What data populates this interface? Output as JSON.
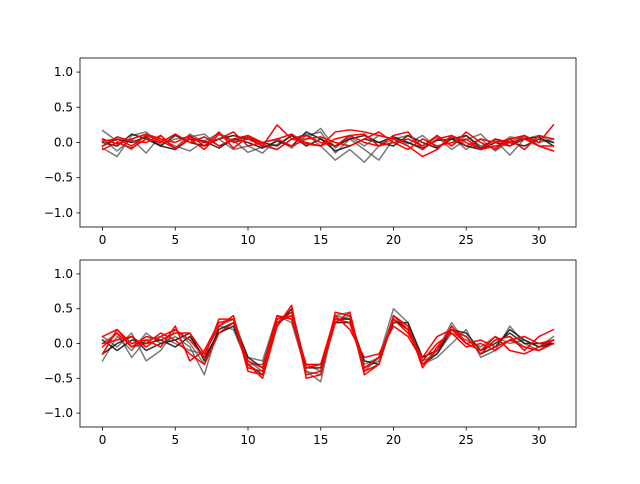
{
  "chart_data": [
    {
      "type": "line",
      "xlim": [
        -1.55,
        32.55
      ],
      "ylim": [
        -1.2,
        1.2
      ],
      "xticks": [
        0,
        5,
        10,
        15,
        20,
        25,
        30
      ],
      "xtick_labels": [
        "0",
        "5",
        "10",
        "15",
        "20",
        "25",
        "30"
      ],
      "yticks": [
        -1.0,
        -0.5,
        0.0,
        0.5,
        1.0
      ],
      "ytick_labels": [
        "−1.0",
        "−0.5",
        "0.0",
        "0.5",
        "1.0"
      ],
      "grid": false,
      "series": [
        {
          "color": "#4d4d4d",
          "alpha": 0.75,
          "values": [
            0.17,
            0.02,
            -0.1,
            0.12,
            0.05,
            -0.05,
            -0.12,
            0.02,
            0.13,
            0.03,
            -0.14,
            -0.06,
            -0.03,
            0.1,
            0.04,
            0.2,
            -0.08,
            0.08,
            -0.05,
            0.1,
            0.05,
            0.1,
            -0.05,
            0.08,
            -0.1,
            0.04,
            0.12,
            -0.08,
            0.08,
            0.05,
            0.1,
            0.0
          ]
        },
        {
          "color": "#4d4d4d",
          "alpha": 0.75,
          "values": [
            -0.08,
            -0.2,
            0.1,
            0.15,
            -0.03,
            0.05,
            0.08,
            0.12,
            -0.05,
            0.03,
            0.08,
            -0.05,
            -0.1,
            0.05,
            0.12,
            -0.05,
            -0.25,
            -0.1,
            -0.28,
            -0.05,
            0.05,
            -0.02,
            0.1,
            -0.08,
            0.08,
            -0.1,
            0.05,
            -0.12,
            0.02,
            0.08,
            -0.05,
            -0.12
          ]
        },
        {
          "color": "#4d4d4d",
          "alpha": 0.75,
          "values": [
            0.05,
            -0.12,
            0.05,
            -0.15,
            0.1,
            -0.08,
            0.12,
            0.0,
            0.05,
            -0.1,
            -0.05,
            -0.15,
            0.05,
            -0.08,
            0.1,
            0.15,
            -0.15,
            0.05,
            -0.1,
            -0.25,
            0.05,
            0.0,
            -0.1,
            0.1,
            -0.05,
            0.1,
            -0.05,
            0.03,
            -0.18,
            0.05,
            0.0,
            0.05
          ]
        },
        {
          "color": "#1a1a1a",
          "alpha": 0.9,
          "values": [
            -0.05,
            0.05,
            0.0,
            0.08,
            -0.05,
            -0.1,
            0.05,
            0.02,
            -0.08,
            0.05,
            0.0,
            -0.08,
            0.02,
            -0.05,
            0.15,
            0.05,
            -0.12,
            -0.05,
            0.05,
            0.0,
            0.08,
            0.0,
            -0.08,
            0.03,
            0.05,
            -0.05,
            -0.1,
            0.0,
            -0.05,
            0.05,
            0.08,
            -0.05
          ]
        },
        {
          "color": "#1a1a1a",
          "alpha": 0.9,
          "values": [
            0.0,
            -0.05,
            0.12,
            0.05,
            -0.05,
            0.1,
            0.0,
            -0.05,
            0.05,
            0.1,
            0.05,
            0.0,
            -0.05,
            0.1,
            -0.05,
            0.05,
            -0.05,
            0.05,
            0.1,
            0.0,
            -0.05,
            0.1,
            0.0,
            -0.08,
            0.05,
            0.1,
            -0.08,
            0.05,
            0.0,
            -0.05,
            0.05,
            0.0
          ]
        },
        {
          "color": "#ff0000",
          "alpha": 1,
          "values": [
            0.02,
            0.05,
            -0.05,
            0.1,
            0.02,
            -0.08,
            0.05,
            -0.1,
            0.12,
            0.0,
            0.05,
            -0.05,
            0.25,
            0.05,
            0.0,
            -0.05,
            0.15,
            0.18,
            0.15,
            0.1,
            0.05,
            -0.05,
            -0.2,
            -0.1,
            0.1,
            0.0,
            -0.1,
            0.05,
            -0.05,
            0.1,
            0.0,
            0.25
          ]
        },
        {
          "color": "#ff0000",
          "alpha": 1,
          "values": [
            -0.05,
            0.08,
            0.02,
            0.0,
            0.1,
            -0.1,
            0.08,
            0.0,
            0.05,
            0.15,
            -0.05,
            0.0,
            0.05,
            0.12,
            -0.02,
            -0.05,
            0.05,
            0.1,
            0.0,
            -0.05,
            0.0,
            0.05,
            -0.05,
            0.1,
            -0.05,
            0.15,
            0.0,
            -0.1,
            0.05,
            0.1,
            -0.05,
            -0.12
          ]
        },
        {
          "color": "#ff0000",
          "alpha": 1,
          "values": [
            0.05,
            -0.02,
            0.05,
            0.12,
            0.05,
            0.0,
            0.1,
            -0.05,
            0.15,
            -0.08,
            0.08,
            -0.02,
            -0.1,
            0.05,
            0.1,
            0.0,
            -0.05,
            0.1,
            0.12,
            -0.05,
            0.1,
            0.15,
            -0.1,
            0.05,
            0.1,
            -0.05,
            0.05,
            0.0,
            0.05,
            -0.1,
            0.1,
            0.05
          ]
        },
        {
          "color": "#ff0000",
          "alpha": 1,
          "values": [
            -0.1,
            0.0,
            -0.08,
            0.05,
            0.0,
            0.12,
            0.0,
            0.08,
            -0.05,
            0.05,
            0.1,
            0.0,
            0.05,
            -0.05,
            0.05,
            0.08,
            0.0,
            -0.05,
            0.05,
            0.15,
            0.0,
            -0.1,
            0.05,
            -0.05,
            0.0,
            0.05,
            -0.1,
            -0.05,
            0.0,
            0.05,
            -0.05,
            -0.05
          ]
        }
      ]
    },
    {
      "type": "line",
      "xlim": [
        -1.55,
        32.55
      ],
      "ylim": [
        -1.2,
        1.2
      ],
      "xticks": [
        0,
        5,
        10,
        15,
        20,
        25,
        30
      ],
      "xtick_labels": [
        "0",
        "5",
        "10",
        "15",
        "20",
        "25",
        "30"
      ],
      "yticks": [
        -1.0,
        -0.5,
        0.0,
        0.5,
        1.0
      ],
      "ytick_labels": [
        "−1.0",
        "−0.5",
        "0.0",
        "0.5",
        "1.0"
      ],
      "grid": false,
      "series": [
        {
          "color": "#4d4d4d",
          "alpha": 0.75,
          "values": [
            -0.25,
            0.1,
            -0.1,
            0.15,
            0.0,
            0.1,
            -0.05,
            -0.45,
            0.25,
            0.35,
            -0.2,
            -0.25,
            0.4,
            0.3,
            -0.4,
            -0.55,
            0.4,
            0.45,
            -0.4,
            -0.2,
            0.5,
            0.3,
            -0.3,
            -0.2,
            0.0,
            0.2,
            -0.2,
            -0.1,
            0.25,
            0.0,
            -0.1,
            0.0
          ]
        },
        {
          "color": "#4d4d4d",
          "alpha": 0.75,
          "values": [
            0.1,
            -0.05,
            0.15,
            -0.25,
            -0.1,
            0.2,
            0.0,
            -0.3,
            0.15,
            0.3,
            -0.25,
            -0.4,
            0.35,
            0.45,
            -0.4,
            -0.45,
            0.3,
            0.4,
            -0.35,
            -0.25,
            0.4,
            0.25,
            -0.2,
            -0.1,
            0.3,
            0.0,
            -0.1,
            0.05,
            0.1,
            -0.05,
            -0.1,
            0.05
          ]
        },
        {
          "color": "#4d4d4d",
          "alpha": 0.75,
          "values": [
            0.0,
            0.15,
            -0.2,
            0.05,
            0.1,
            0.0,
            -0.1,
            -0.15,
            0.25,
            0.2,
            -0.3,
            -0.3,
            0.3,
            0.4,
            -0.3,
            -0.4,
            0.4,
            0.35,
            -0.3,
            -0.2,
            0.35,
            0.2,
            -0.25,
            -0.15,
            0.15,
            0.05,
            -0.05,
            0.1,
            0.0,
            0.05,
            -0.05,
            0.1
          ]
        },
        {
          "color": "#1a1a1a",
          "alpha": 0.9,
          "values": [
            -0.15,
            0.0,
            0.1,
            -0.1,
            0.0,
            0.05,
            0.15,
            -0.25,
            0.2,
            0.3,
            -0.2,
            -0.35,
            0.4,
            0.35,
            -0.35,
            -0.35,
            0.35,
            0.35,
            -0.25,
            -0.3,
            0.35,
            0.2,
            -0.3,
            -0.15,
            0.2,
            0.1,
            -0.15,
            -0.05,
            0.2,
            0.05,
            -0.05,
            0.0
          ]
        },
        {
          "color": "#1a1a1a",
          "alpha": 0.9,
          "values": [
            0.05,
            -0.1,
            0.05,
            0.0,
            0.05,
            -0.05,
            0.1,
            -0.2,
            0.15,
            0.25,
            -0.3,
            -0.45,
            0.25,
            0.5,
            -0.35,
            -0.3,
            0.3,
            0.3,
            -0.35,
            -0.2,
            0.3,
            0.3,
            -0.2,
            -0.1,
            0.2,
            0.15,
            -0.1,
            0.0,
            0.15,
            0.0,
            0.0,
            0.0
          ]
        },
        {
          "color": "#ff0000",
          "alpha": 1,
          "values": [
            -0.15,
            0.2,
            0.0,
            0.05,
            -0.05,
            0.25,
            -0.25,
            -0.1,
            0.3,
            0.35,
            -0.3,
            -0.5,
            0.25,
            0.55,
            -0.5,
            -0.45,
            0.45,
            0.4,
            -0.45,
            -0.3,
            0.4,
            0.2,
            -0.3,
            -0.1,
            0.25,
            0.0,
            -0.1,
            0.1,
            -0.1,
            -0.15,
            -0.05,
            0.05
          ]
        },
        {
          "color": "#ff0000",
          "alpha": 1,
          "values": [
            0.1,
            0.2,
            -0.05,
            0.1,
            0.05,
            0.15,
            0.15,
            -0.15,
            0.25,
            0.4,
            -0.35,
            -0.4,
            0.35,
            0.4,
            -0.45,
            -0.4,
            0.3,
            0.45,
            -0.4,
            -0.3,
            0.4,
            0.25,
            -0.35,
            -0.05,
            0.2,
            0.1,
            -0.15,
            0.05,
            0.1,
            -0.1,
            0.1,
            0.2
          ]
        },
        {
          "color": "#ff0000",
          "alpha": 1,
          "values": [
            0.0,
            0.05,
            0.1,
            -0.05,
            0.1,
            0.2,
            0.05,
            -0.2,
            0.35,
            0.35,
            -0.4,
            -0.45,
            0.3,
            0.45,
            -0.35,
            -0.3,
            0.35,
            0.3,
            -0.35,
            -0.2,
            0.35,
            0.15,
            -0.2,
            0.1,
            0.2,
            0.0,
            0.05,
            -0.05,
            0.05,
            0.1,
            0.0,
            0.05
          ]
        },
        {
          "color": "#ff0000",
          "alpha": 1,
          "values": [
            -0.05,
            0.15,
            -0.05,
            0.0,
            0.15,
            0.05,
            -0.15,
            -0.3,
            0.15,
            0.3,
            -0.25,
            -0.35,
            0.4,
            0.35,
            -0.3,
            -0.3,
            0.4,
            0.2,
            -0.2,
            -0.15,
            0.25,
            0.1,
            -0.25,
            0.0,
            0.15,
            -0.05,
            0.0,
            -0.1,
            0.05,
            -0.05,
            -0.1,
            0.0
          ]
        }
      ]
    }
  ]
}
